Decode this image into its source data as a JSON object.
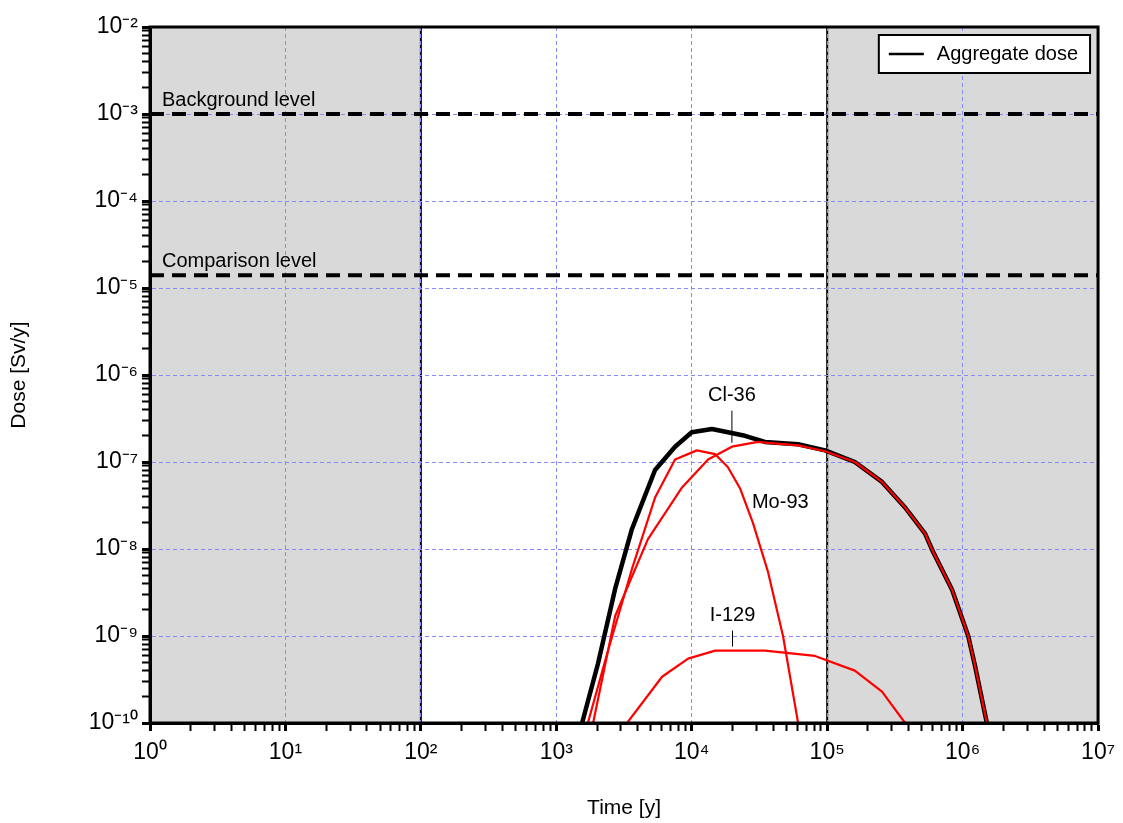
{
  "chart_data": {
    "type": "line",
    "xlabel": "Time [y]",
    "ylabel": "Dose [Sv/y]",
    "log": "xy",
    "grid": true,
    "legend": "top right",
    "line_style": "solid",
    "marker": "none",
    "xlim": [
      1,
      10000000
    ],
    "ylim": [
      1e-10,
      0.01
    ],
    "xticks": [
      {
        "value": 1,
        "label": "10⁰"
      },
      {
        "value": 2,
        "label": null
      },
      {
        "value": 3,
        "label": null
      },
      {
        "value": 4,
        "label": null
      },
      {
        "value": 5,
        "label": null
      },
      {
        "value": 6,
        "label": null
      },
      {
        "value": 7,
        "label": null
      },
      {
        "value": 8,
        "label": null
      },
      {
        "value": 9,
        "label": null
      },
      {
        "value": 10,
        "label": "10¹"
      },
      {
        "value": 20,
        "label": null
      },
      {
        "value": 30,
        "label": null
      },
      {
        "value": 40,
        "label": null
      },
      {
        "value": 50,
        "label": null
      },
      {
        "value": 60,
        "label": null
      },
      {
        "value": 70,
        "label": null
      },
      {
        "value": 80,
        "label": null
      },
      {
        "value": 90,
        "label": null
      },
      {
        "value": 100,
        "label": "10²"
      },
      {
        "value": 200,
        "label": null
      },
      {
        "value": 300,
        "label": null
      },
      {
        "value": 400,
        "label": null
      },
      {
        "value": 500,
        "label": null
      },
      {
        "value": 600,
        "label": null
      },
      {
        "value": 700,
        "label": null
      },
      {
        "value": 800,
        "label": null
      },
      {
        "value": 900,
        "label": null
      },
      {
        "value": 1000,
        "label": "10³"
      },
      {
        "value": 2000,
        "label": null
      },
      {
        "value": 3000,
        "label": null
      },
      {
        "value": 4000,
        "label": null
      },
      {
        "value": 5000,
        "label": null
      },
      {
        "value": 6000,
        "label": null
      },
      {
        "value": 7000,
        "label": null
      },
      {
        "value": 8000,
        "label": null
      },
      {
        "value": 9000,
        "label": null
      },
      {
        "value": 10000,
        "label": "10⁴"
      },
      {
        "value": 20000,
        "label": null
      },
      {
        "value": 30000,
        "label": null
      },
      {
        "value": 40000,
        "label": null
      },
      {
        "value": 50000,
        "label": null
      },
      {
        "value": 60000,
        "label": null
      },
      {
        "value": 70000,
        "label": null
      },
      {
        "value": 80000,
        "label": null
      },
      {
        "value": 90000,
        "label": null
      },
      {
        "value": 100000,
        "label": "10⁵"
      },
      {
        "value": 200000,
        "label": null
      },
      {
        "value": 300000,
        "label": null
      },
      {
        "value": 400000,
        "label": null
      },
      {
        "value": 500000,
        "label": null
      },
      {
        "value": 600000,
        "label": null
      },
      {
        "value": 700000,
        "label": null
      },
      {
        "value": 800000,
        "label": null
      },
      {
        "value": 900000,
        "label": null
      },
      {
        "value": 1000000,
        "label": "10⁶"
      },
      {
        "value": 2000000,
        "label": null
      },
      {
        "value": 3000000,
        "label": null
      },
      {
        "value": 4000000,
        "label": null
      },
      {
        "value": 5000000,
        "label": null
      },
      {
        "value": 6000000,
        "label": null
      },
      {
        "value": 7000000,
        "label": null
      },
      {
        "value": 8000000,
        "label": null
      },
      {
        "value": 9000000,
        "label": null
      },
      {
        "value": 10000000,
        "label": "10⁷"
      }
    ],
    "yticks": [
      {
        "value": 1e-10,
        "label": "10⁻¹⁰"
      },
      {
        "value": 2e-10,
        "label": null
      },
      {
        "value": 3e-10,
        "label": null
      },
      {
        "value": 4e-10,
        "label": null
      },
      {
        "value": 5e-10,
        "label": null
      },
      {
        "value": 6e-10,
        "label": null
      },
      {
        "value": 7e-10,
        "label": null
      },
      {
        "value": 8e-10,
        "label": null
      },
      {
        "value": 9e-10,
        "label": null
      },
      {
        "value": 1e-09,
        "label": "10⁻⁹"
      },
      {
        "value": 2e-09,
        "label": null
      },
      {
        "value": 3e-09,
        "label": null
      },
      {
        "value": 4e-09,
        "label": null
      },
      {
        "value": 5e-09,
        "label": null
      },
      {
        "value": 6e-09,
        "label": null
      },
      {
        "value": 7e-09,
        "label": null
      },
      {
        "value": 8e-09,
        "label": null
      },
      {
        "value": 9e-09,
        "label": null
      },
      {
        "value": 1e-08,
        "label": "10⁻⁸"
      },
      {
        "value": 2e-08,
        "label": null
      },
      {
        "value": 3e-08,
        "label": null
      },
      {
        "value": 4e-08,
        "label": null
      },
      {
        "value": 5e-08,
        "label": null
      },
      {
        "value": 6e-08,
        "label": null
      },
      {
        "value": 7e-08,
        "label": null
      },
      {
        "value": 8e-08,
        "label": null
      },
      {
        "value": 9e-08,
        "label": null
      },
      {
        "value": 1e-07,
        "label": "10⁻⁷"
      },
      {
        "value": 2e-07,
        "label": null
      },
      {
        "value": 3e-07,
        "label": null
      },
      {
        "value": 4e-07,
        "label": null
      },
      {
        "value": 5e-07,
        "label": null
      },
      {
        "value": 6e-07,
        "label": null
      },
      {
        "value": 7e-07,
        "label": null
      },
      {
        "value": 8e-07,
        "label": null
      },
      {
        "value": 9e-07,
        "label": null
      },
      {
        "value": 1e-06,
        "label": "10⁻⁶"
      },
      {
        "value": 2e-06,
        "label": null
      },
      {
        "value": 3e-06,
        "label": null
      },
      {
        "value": 4e-06,
        "label": null
      },
      {
        "value": 5e-06,
        "label": null
      },
      {
        "value": 6e-06,
        "label": null
      },
      {
        "value": 7e-06,
        "label": null
      },
      {
        "value": 8e-06,
        "label": null
      },
      {
        "value": 9e-06,
        "label": null
      },
      {
        "value": 1e-05,
        "label": "10⁻⁵"
      },
      {
        "value": 2e-05,
        "label": null
      },
      {
        "value": 3e-05,
        "label": null
      },
      {
        "value": 4e-05,
        "label": null
      },
      {
        "value": 5e-05,
        "label": null
      },
      {
        "value": 6e-05,
        "label": null
      },
      {
        "value": 7e-05,
        "label": null
      },
      {
        "value": 8e-05,
        "label": null
      },
      {
        "value": 9e-05,
        "label": null
      },
      {
        "value": 0.0001,
        "label": "10⁻⁴"
      },
      {
        "value": 0.0002,
        "label": null
      },
      {
        "value": 0.0003,
        "label": null
      },
      {
        "value": 0.0004,
        "label": null
      },
      {
        "value": 0.0005,
        "label": null
      },
      {
        "value": 0.0006,
        "label": null
      },
      {
        "value": 0.0007,
        "label": null
      },
      {
        "value": 0.0008,
        "label": null
      },
      {
        "value": 0.0009,
        "label": null
      },
      {
        "value": 0.001,
        "label": "10⁻³"
      },
      {
        "value": 0.002,
        "label": null
      },
      {
        "value": 0.003,
        "label": null
      },
      {
        "value": 0.004,
        "label": null
      },
      {
        "value": 0.005,
        "label": null
      },
      {
        "value": 0.006,
        "label": null
      },
      {
        "value": 0.007,
        "label": null
      },
      {
        "value": 0.008,
        "label": null
      },
      {
        "value": 0.009,
        "label": null
      },
      {
        "value": 0.01,
        "label": "10⁻²"
      }
    ],
    "series": [
      {
        "name": "Aggregate dose",
        "color": "#000000",
        "x": [
          1550,
          2030,
          2720,
          3620,
          5360,
          7530,
          10000,
          14100,
          18500,
          24700,
          34700,
          61000,
          96500,
          160000,
          254000,
          376000,
          528000,
          605000,
          836000,
          1100000,
          1240000,
          1510000
        ],
        "values": [
          1e-10,
          4.8e-10,
          3.5e-09,
          1.7e-08,
          8.1e-08,
          1.5e-07,
          2.2e-07,
          2.4e-07,
          2.2e-07,
          2e-07,
          1.7e-07,
          1.6e-07,
          1.36e-07,
          1e-07,
          5.9e-08,
          3e-08,
          1.5e-08,
          9.3e-09,
          3.4e-09,
          1e-09,
          4.4e-10,
          1e-10
        ]
      },
      {
        "color": "#ff0000",
        "x": [
          1870,
          2720,
          4750,
          8480,
          13200,
          19800,
          30800,
          61000,
          96500,
          160000,
          254000,
          376000,
          528000,
          605000,
          836000,
          1100000,
          1240000,
          1510000
        ],
        "values": [
          1e-10,
          1.7e-09,
          1.3e-08,
          5.1e-08,
          1.07e-07,
          1.5e-07,
          1.7e-07,
          1.55e-07,
          1.33e-07,
          1e-07,
          5.9e-08,
          3e-08,
          1.5e-08,
          9.3e-09,
          3.4e-09,
          1e-09,
          4.4e-10,
          1e-10
        ]
      },
      {
        "color": "#ff0000",
        "x": [
          1710,
          2410,
          3620,
          5360,
          7530,
          10900,
          14900,
          18500,
          22700,
          28300,
          36500,
          47200,
          61000
        ],
        "values": [
          1e-10,
          6.8e-10,
          5.9e-09,
          3.9e-08,
          1.07e-07,
          1.36e-07,
          1.23e-07,
          8.7e-08,
          5e-08,
          2e-08,
          5.5e-09,
          1e-09,
          1e-10
        ]
      },
      {
        "color": "#ff0000",
        "x": [
          3330,
          6040,
          9400,
          14900,
          34700,
          81300,
          160000,
          254000,
          376000
        ],
        "values": [
          1e-10,
          3.4e-10,
          5.5e-10,
          6.8e-10,
          6.8e-10,
          5.9e-10,
          4e-10,
          2.3e-10,
          1e-10
        ]
      }
    ],
    "ref_lines": [
      {
        "axis": "y",
        "value": 0.001,
        "label": "Background level",
        "color": "#000000",
        "line_style": "dashed"
      },
      {
        "axis": "y",
        "value": 1.4e-05,
        "label": "Comparison level",
        "color": "#000000",
        "line_style": "dashed"
      }
    ],
    "bands": [
      {
        "axis": "x",
        "from": 1,
        "to": 100,
        "color": "#d9d9d9"
      },
      {
        "axis": "x",
        "from": 100000,
        "to": 10000000,
        "color": "#d9d9d9"
      }
    ],
    "annotations": [
      {
        "text": "Cl-36",
        "x": 19800,
        "y": 1.5e-07
      },
      {
        "text": "Mo-93",
        "x": 22700,
        "y": 5e-08
      },
      {
        "text": "I-129",
        "x": 20000,
        "y": 6.8e-10
      }
    ]
  }
}
